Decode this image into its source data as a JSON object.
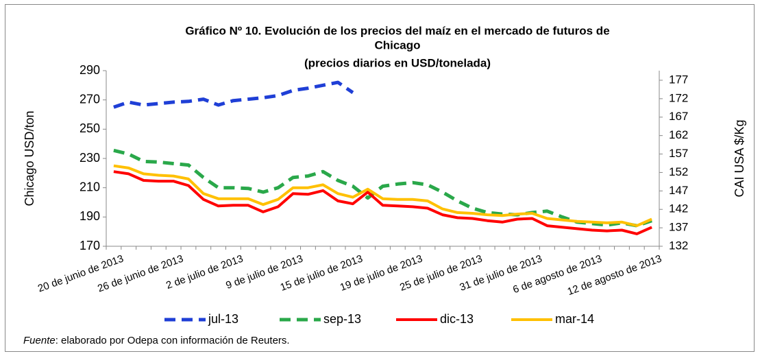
{
  "chart_data": {
    "type": "line",
    "title": [
      "Gráfico Nº 10. Evolución de los precios del maíz en el mercado de futuros de",
      "Chicago",
      "(precios diarios en USD/tonelada)"
    ],
    "y_label": "Chicago USD/ton",
    "y2_label": "CAI USA $/Kg",
    "categories": [
      "20 de junio de 2013",
      null,
      null,
      null,
      "26 de junio de 2013",
      null,
      null,
      null,
      "2 de julio de 2013",
      null,
      null,
      null,
      "9 de julio de 2013",
      null,
      null,
      null,
      "15 de julio de 2013",
      null,
      null,
      null,
      "19 de julio de 2013",
      null,
      null,
      null,
      "25 de julio de 2013",
      null,
      null,
      null,
      "31 de julio de 2013",
      null,
      null,
      null,
      "6 de agosto de 2013",
      null,
      null,
      null,
      "12 de agosto de 2013"
    ],
    "series": [
      {
        "name": "jul-13",
        "color": "#1f3fd6",
        "dashed": true,
        "values": [
          265,
          268.5,
          266.5,
          267.5,
          268.5,
          269,
          270.5,
          266.5,
          269.5,
          270.5,
          271.5,
          273,
          276.5,
          278,
          280,
          282,
          275,
          null,
          null,
          null,
          null,
          null,
          null,
          null,
          null,
          null,
          null,
          null,
          null,
          null,
          null,
          null,
          null,
          null,
          null,
          null,
          null
        ]
      },
      {
        "name": "sep-13",
        "color": "#2aa84a",
        "dashed": true,
        "values": [
          235.5,
          233,
          228,
          227.5,
          226.5,
          225.5,
          217,
          210,
          210,
          209.5,
          207,
          210,
          217,
          218,
          221,
          215,
          211,
          203,
          211,
          212.5,
          213.5,
          212,
          207,
          201,
          196,
          193,
          192,
          191.5,
          193,
          194,
          190,
          186.5,
          185.5,
          184.5,
          186,
          184,
          187.5
        ]
      },
      {
        "name": "dic-13",
        "color": "#ff0000",
        "dashed": false,
        "values": [
          221,
          219.5,
          215,
          214.5,
          214.5,
          211.5,
          202,
          197.5,
          198,
          198,
          193.5,
          197,
          206,
          205.5,
          208,
          201,
          199,
          207,
          198,
          197.5,
          197,
          196,
          191.5,
          189.5,
          189,
          187.5,
          186.5,
          188.5,
          189,
          184,
          183,
          182,
          181,
          180.5,
          181,
          178.5,
          183
        ]
      },
      {
        "name": "mar-14",
        "color": "#ffc000",
        "dashed": false,
        "values": [
          225,
          223.5,
          219.5,
          218.5,
          218,
          216,
          206,
          202.5,
          202.5,
          202.5,
          198.5,
          202,
          210,
          210,
          212,
          206,
          203.5,
          209,
          202.5,
          202,
          202,
          201,
          195.5,
          193,
          192.5,
          191.5,
          191,
          192,
          192.5,
          189,
          188,
          187,
          186.5,
          186,
          186.5,
          184,
          188.5
        ]
      }
    ],
    "ylim": [
      170,
      290
    ],
    "yticks": [
      170,
      190,
      210,
      230,
      250,
      270,
      290
    ],
    "y2lim": [
      132,
      179.6
    ],
    "y2ticks": [
      132,
      137,
      142,
      147,
      152,
      157,
      162,
      167,
      172,
      177
    ],
    "grid": false,
    "legend": "bottom"
  },
  "footnote": {
    "label": "Fuente",
    "text": ": elaborado por Odepa con información de Reuters."
  }
}
